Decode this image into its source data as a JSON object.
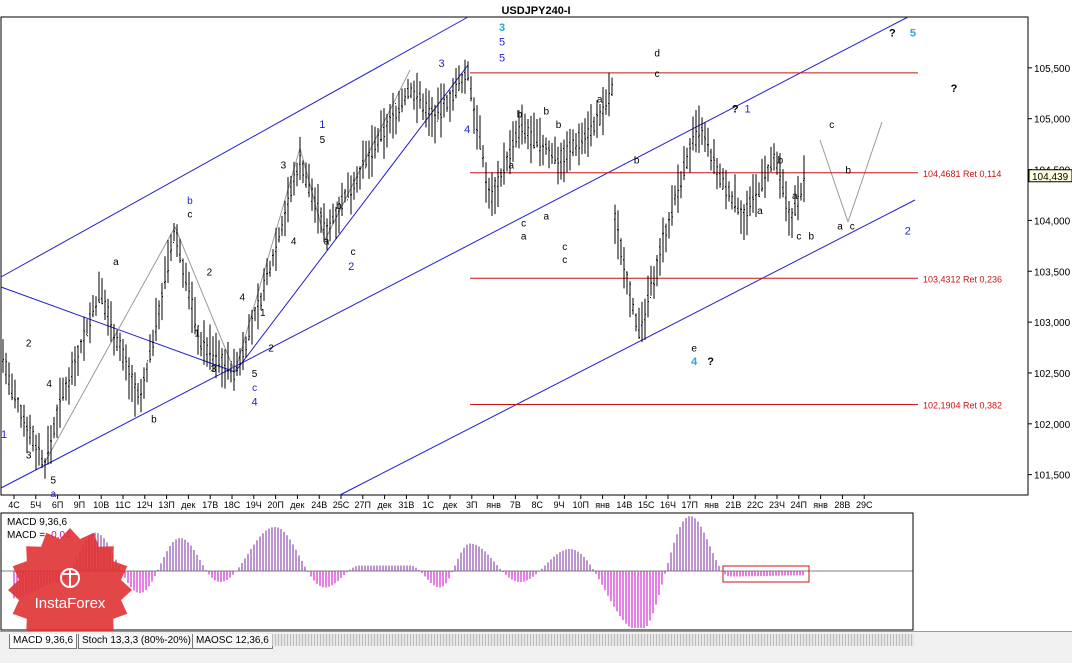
{
  "window": {
    "title": "USDJPY240-I"
  },
  "chart_data": [
    {
      "type": "candlestick",
      "title": "USDJPY240-I",
      "ylim": [
        101.3,
        106.0
      ],
      "y_ticks": [
        "105,500",
        "105,000",
        "104,500",
        "104,000",
        "103,500",
        "103,000",
        "102,500",
        "102,000",
        "101,500"
      ],
      "y_tick_values": [
        105.5,
        105.0,
        104.5,
        104.0,
        103.5,
        103.0,
        102.5,
        102.0,
        101.5
      ],
      "current_price": {
        "value": 104.439,
        "label": "104,439"
      },
      "x_labels": [
        "4С",
        "5Ч",
        "6П",
        "9П",
        "10В",
        "11С",
        "12Ч",
        "13П",
        "дек",
        "17В",
        "18С",
        "19Ч",
        "20П",
        "дек",
        "24В",
        "25С",
        "27П",
        "дек",
        "31В",
        "1С",
        "дек",
        "3П",
        "янв",
        "7В",
        "8С",
        "9Ч",
        "10П",
        "янв",
        "14В",
        "15С",
        "16Ч",
        "17П",
        "янв",
        "21В",
        "22С",
        "23Ч",
        "24П",
        "янв",
        "28В",
        "29С"
      ],
      "fib_levels": [
        {
          "value": 104.4681,
          "label": "104,4681 Ret 0,114"
        },
        {
          "value": 103.4312,
          "label": "103,4312 Ret 0,236"
        },
        {
          "value": 102.1904,
          "label": "102,1904 Ret 0,382"
        }
      ],
      "swing_high_value": 105.45,
      "wave_labels": [
        {
          "text": "3",
          "color": "#29a7d6",
          "x": 48.5,
          "y": 105.9
        },
        {
          "text": "5",
          "color": "#1f1fcf",
          "x": 48.5,
          "y": 105.76
        },
        {
          "text": "5",
          "color": "#1f1fcf",
          "x": 48.5,
          "y": 105.6
        },
        {
          "text": "?",
          "color": "#000000",
          "x": 86.5,
          "y": 105.85
        },
        {
          "text": "5",
          "color": "#29a7d6",
          "x": 88.5,
          "y": 105.85
        },
        {
          "text": "?",
          "color": "#000000",
          "x": 92.5,
          "y": 105.3
        },
        {
          "text": "d",
          "color": "#000000",
          "x": 63.6,
          "y": 105.65
        },
        {
          "text": "c",
          "color": "#000000",
          "x": 63.6,
          "y": 105.45
        },
        {
          "text": "?",
          "color": "#000000",
          "x": 71.2,
          "y": 105.1
        },
        {
          "text": "1",
          "color": "#1f1fcf",
          "x": 72.4,
          "y": 105.1
        },
        {
          "text": "a",
          "color": "#000000",
          "x": 58.0,
          "y": 105.2
        },
        {
          "text": "b",
          "color": "#000000",
          "x": 50.2,
          "y": 105.05
        },
        {
          "text": "b",
          "color": "#000000",
          "x": 52.8,
          "y": 105.08
        },
        {
          "text": "b",
          "color": "#000000",
          "x": 54.0,
          "y": 104.95
        },
        {
          "text": "a",
          "color": "#000000",
          "x": 49.4,
          "y": 104.55
        },
        {
          "text": "c",
          "color": "#000000",
          "x": 50.6,
          "y": 103.98
        },
        {
          "text": "a",
          "color": "#000000",
          "x": 50.6,
          "y": 103.85
        },
        {
          "text": "a",
          "color": "#000000",
          "x": 52.8,
          "y": 104.05
        },
        {
          "text": "c",
          "color": "#000000",
          "x": 54.6,
          "y": 103.75
        },
        {
          "text": "c",
          "color": "#000000",
          "x": 54.6,
          "y": 103.62
        },
        {
          "text": "b",
          "color": "#000000",
          "x": 61.6,
          "y": 104.6
        },
        {
          "text": "e",
          "color": "#000000",
          "x": 67.2,
          "y": 102.75
        },
        {
          "text": "4",
          "color": "#29a7d6",
          "x": 67.2,
          "y": 102.62
        },
        {
          "text": "?",
          "color": "#000000",
          "x": 68.8,
          "y": 102.62
        },
        {
          "text": "b",
          "color": "#000000",
          "x": 75.6,
          "y": 104.6
        },
        {
          "text": "a",
          "color": "#000000",
          "x": 73.6,
          "y": 104.1
        },
        {
          "text": "a",
          "color": "#000000",
          "x": 77.0,
          "y": 104.25
        },
        {
          "text": "c",
          "color": "#000000",
          "x": 77.4,
          "y": 103.85
        },
        {
          "text": "b",
          "color": "#000000",
          "x": 78.6,
          "y": 103.85
        },
        {
          "text": "c",
          "color": "#000000",
          "x": 80.6,
          "y": 104.95
        },
        {
          "text": "b",
          "color": "#000000",
          "x": 82.2,
          "y": 104.5
        },
        {
          "text": "a",
          "color": "#000000",
          "x": 81.4,
          "y": 103.95
        },
        {
          "text": "c",
          "color": "#000000",
          "x": 82.6,
          "y": 103.95
        },
        {
          "text": "2",
          "color": "#1f1fcf",
          "x": 88.0,
          "y": 103.9
        },
        {
          "text": "3",
          "color": "#1f1fcf",
          "x": 42.6,
          "y": 105.55
        },
        {
          "text": "4",
          "color": "#1f1fcf",
          "x": 45.1,
          "y": 104.9
        },
        {
          "text": "1",
          "color": "#1f1fcf",
          "x": 31.0,
          "y": 104.95
        },
        {
          "text": "5",
          "color": "#000000",
          "x": 31.0,
          "y": 104.8
        },
        {
          "text": "3",
          "color": "#000000",
          "x": 27.2,
          "y": 104.55
        },
        {
          "text": "b",
          "color": "#000000",
          "x": 32.6,
          "y": 104.15
        },
        {
          "text": "a",
          "color": "#000000",
          "x": 31.4,
          "y": 103.8
        },
        {
          "text": "c",
          "color": "#000000",
          "x": 34.0,
          "y": 103.7
        },
        {
          "text": "2",
          "color": "#1f1fcf",
          "x": 33.8,
          "y": 103.55
        },
        {
          "text": "4",
          "color": "#000000",
          "x": 28.2,
          "y": 103.8
        },
        {
          "text": "1",
          "color": "#000000",
          "x": 25.2,
          "y": 103.1
        },
        {
          "text": "2",
          "color": "#000000",
          "x": 26.0,
          "y": 102.75
        },
        {
          "text": "5",
          "color": "#000000",
          "x": 24.4,
          "y": 102.5
        },
        {
          "text": "c",
          "color": "#1f1fcf",
          "x": 24.4,
          "y": 102.36
        },
        {
          "text": "4",
          "color": "#1f1fcf",
          "x": 24.4,
          "y": 102.22
        },
        {
          "text": "b",
          "color": "#1f1fcf",
          "x": 18.1,
          "y": 104.2
        },
        {
          "text": "c",
          "color": "#000000",
          "x": 18.1,
          "y": 104.07
        },
        {
          "text": "2",
          "color": "#000000",
          "x": 20.0,
          "y": 103.5
        },
        {
          "text": "4",
          "color": "#000000",
          "x": 23.2,
          "y": 103.25
        },
        {
          "text": "1",
          "color": "#000000",
          "x": 18.8,
          "y": 102.9
        },
        {
          "text": "3",
          "color": "#000000",
          "x": 20.4,
          "y": 102.55
        },
        {
          "text": "b",
          "color": "#000000",
          "x": 14.6,
          "y": 102.05
        },
        {
          "text": "a",
          "color": "#000000",
          "x": 10.9,
          "y": 103.6
        },
        {
          "text": "2",
          "color": "#000000",
          "x": 2.4,
          "y": 102.8
        },
        {
          "text": "4",
          "color": "#000000",
          "x": 4.4,
          "y": 102.4
        },
        {
          "text": "3",
          "color": "#000000",
          "x": 2.4,
          "y": 101.7
        },
        {
          "text": "5",
          "color": "#000000",
          "x": 4.8,
          "y": 101.45
        },
        {
          "text": "a",
          "color": "#1f1fcf",
          "x": 4.8,
          "y": 101.32
        },
        {
          "text": "1",
          "color": "#1f1fcf",
          "x": 0.0,
          "y": 101.9
        }
      ]
    },
    {
      "type": "bar",
      "title": "MACD 9,36,6",
      "series": [
        {
          "name": "MACD = -0,04"
        }
      ],
      "macd_value_label": "-0,04",
      "ylim": [
        -0.55,
        0.5
      ]
    }
  ],
  "overlay": {
    "watermark_label": "InstaForex"
  },
  "tabs": [
    {
      "label": "MACD 9,36,6",
      "active": true
    },
    {
      "label": "Stoch 13,3,3 (80%-20%)",
      "active": false
    },
    {
      "label": "MAOSC 12,36,6",
      "active": false
    }
  ],
  "colors": {
    "candle": "#000000",
    "channel": "#1f1fcf",
    "fib": "#c81414",
    "macd": "#cc00cc",
    "grid": "#000000",
    "watermark": "#e03232"
  }
}
